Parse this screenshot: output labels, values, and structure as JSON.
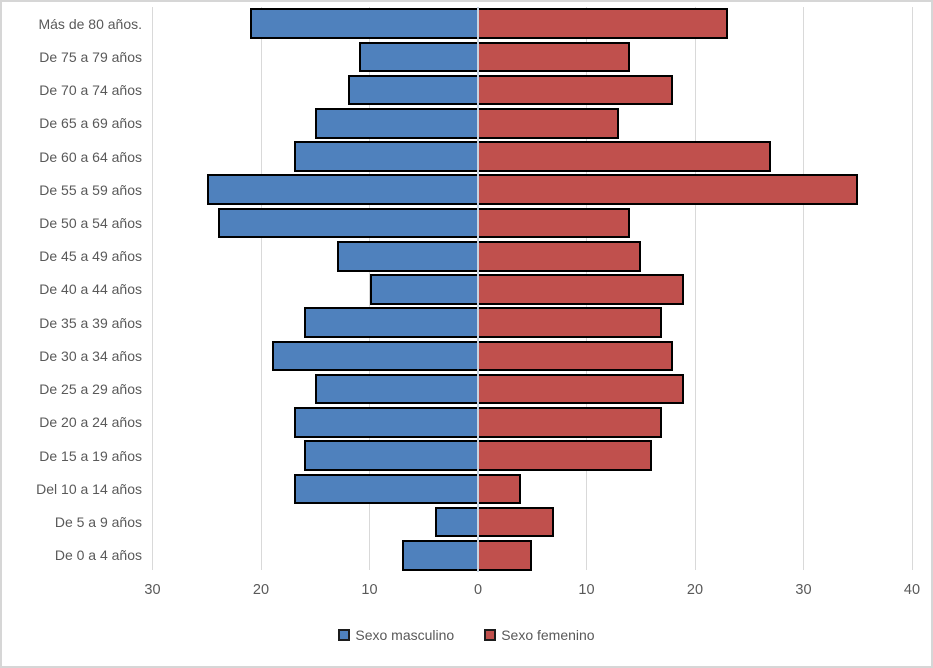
{
  "chart_data": {
    "type": "bar",
    "variant": "population-pyramid",
    "title": "",
    "xlabel": "",
    "ylabel": "",
    "grid": true,
    "legend_position": "bottom",
    "categories_top_to_bottom": [
      "Más de 80 años.",
      "De 75 a 79 años",
      "De 70 a 74 años",
      "De 65 a 69 años",
      "De 60 a 64 años",
      "De 55 a 59 años",
      "De 50 a 54 años",
      "De 45 a 49 años",
      "De 40 a 44 años",
      "De 35 a 39 años",
      "De 30 a 34 años",
      "De 25 a 29 años",
      "De 20 a 24 años",
      "De 15 a 19 años",
      "Del 10 a 14 años",
      "De 5 a 9 años",
      "De 0 a 4 años"
    ],
    "series": [
      {
        "name": "Sexo masculino",
        "side": "left",
        "color": "#4F81BD",
        "values": [
          21,
          11,
          12,
          15,
          17,
          25,
          24,
          13,
          10,
          16,
          19,
          15,
          17,
          16,
          17,
          4,
          7
        ]
      },
      {
        "name": "Sexo femenino",
        "side": "right",
        "color": "#C0504D",
        "values": [
          23,
          14,
          18,
          13,
          27,
          35,
          14,
          15,
          19,
          17,
          18,
          19,
          17,
          16,
          4,
          7,
          5
        ]
      }
    ],
    "x_axis": {
      "tick_values": [
        -30,
        -20,
        -10,
        0,
        10,
        20,
        30,
        40
      ],
      "tick_labels": [
        "30",
        "20",
        "10",
        "0",
        "10",
        "20",
        "30",
        "40"
      ],
      "range": [
        -30,
        40
      ]
    },
    "colors": {
      "bar_border": "#000000",
      "gridline": "#d9d9d9",
      "zero_axis_line": "#c9d4e2",
      "axis_text": "#595959",
      "figure_border": "#d6d6d6",
      "background": "#ffffff"
    }
  }
}
